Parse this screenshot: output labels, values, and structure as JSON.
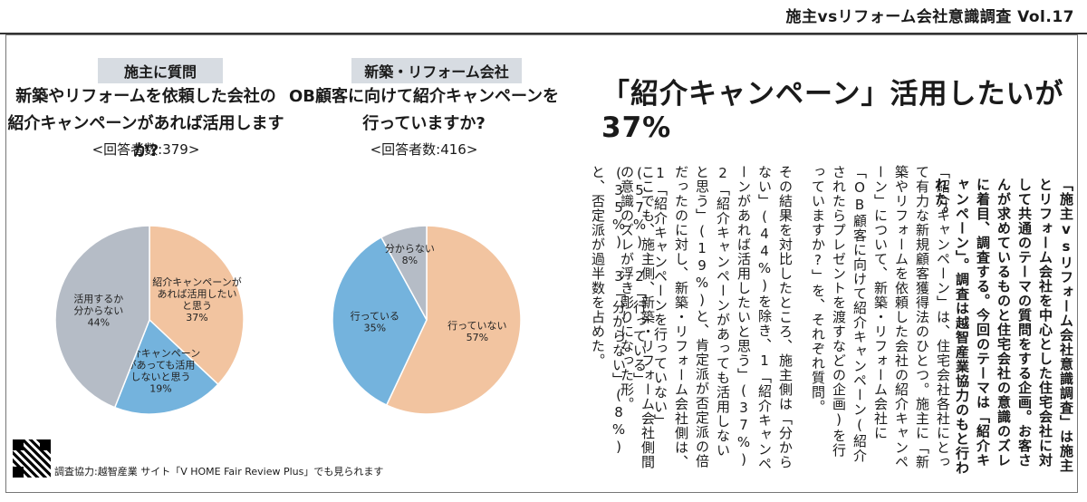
{
  "header": {
    "series_title": "施主vsリフォーム会社意識調査 Vol.17"
  },
  "left_survey": {
    "tag": "施主に質問",
    "question_line1": "新築やリフォームを依頼した会社の",
    "question_line2": "紹介キャンペーンがあれば活用しますか?",
    "respondents": "<回答者数:379>"
  },
  "right_survey": {
    "tag": "新築・リフォーム会社",
    "question_line1": "OB顧客に向けて紹介キャンペーンを",
    "question_line2": "行っていますか?",
    "respondents": "<回答者数:416>"
  },
  "article": {
    "headline": "「紹介キャンペーン」活用したいが37%",
    "lead": "「施主vsリフォーム会社意識調査」は施主とリフォーム会社を中心とした住宅会社に対して共通のテーマの質問をする企画。お客さんが求めているものと住宅会社の意識のズレに着目、調査する。今回のテーマは「紹介キャンペーン」。調査は越智産業協力のもと行われた。",
    "para1": "「紹介キャンペーン」は、住宅会社各社にとって有力な新規顧客獲得法のひとつ。施主に「新築やリフォームを依頼した会社の紹介キャンペーン」について、新築・リフォーム会社に「OB顧客に向けて紹介キャンペーン(紹介されたらプレゼントを渡すなどの企画)を行っていますか?」を、それぞれ質問。",
    "para2": "その結果を対比したところ、施主側は「分からない」(44%)を除き、1「紹介キャンペーンがあれば活用したいと思う」(37%) 2「紹介キャンペーンがあっても活用しないと思う」(19%)と、肯定派が否定派の倍だったのに対し、新築・リフォーム会社側は、1「紹介キャンペーンを行っていない」(57%) 2「行っている」(35%) 3「分からない」(8%)と、否定派が過半数を占めた。",
    "para3": "ここでも、施主側、新築・リフォーム会社側間の意識のズレが浮き彫りになった形。"
  },
  "footer": {
    "credit": "調査協力:越智産業 サイト「V HOME Fair Review Plus」でも見られます"
  },
  "chart_data": [
    {
      "type": "pie",
      "slices": [
        {
          "label_lines": [
            "紹介キャンペーンが",
            "あれば活用したい",
            "と思う"
          ],
          "pct_text": "37%",
          "value": 37,
          "color": "#f2c4a0"
        },
        {
          "label_lines": [
            "紹介キャンペーン",
            "があっても活用",
            "しないと思う"
          ],
          "pct_text": "19%",
          "value": 19,
          "color": "#74b3dd"
        },
        {
          "label_lines": [
            "活用するか",
            "分からない"
          ],
          "pct_text": "44%",
          "value": 44,
          "color": "#b5bcc6"
        }
      ]
    },
    {
      "type": "pie",
      "slices": [
        {
          "label_lines": [
            "行っていない"
          ],
          "pct_text": "57%",
          "value": 57,
          "color": "#f2c4a0"
        },
        {
          "label_lines": [
            "行っている"
          ],
          "pct_text": "35%",
          "value": 35,
          "color": "#74b3dd"
        },
        {
          "label_lines": [
            "分からない"
          ],
          "pct_text": "8%",
          "value": 8,
          "color": "#b5bcc6"
        }
      ]
    }
  ]
}
